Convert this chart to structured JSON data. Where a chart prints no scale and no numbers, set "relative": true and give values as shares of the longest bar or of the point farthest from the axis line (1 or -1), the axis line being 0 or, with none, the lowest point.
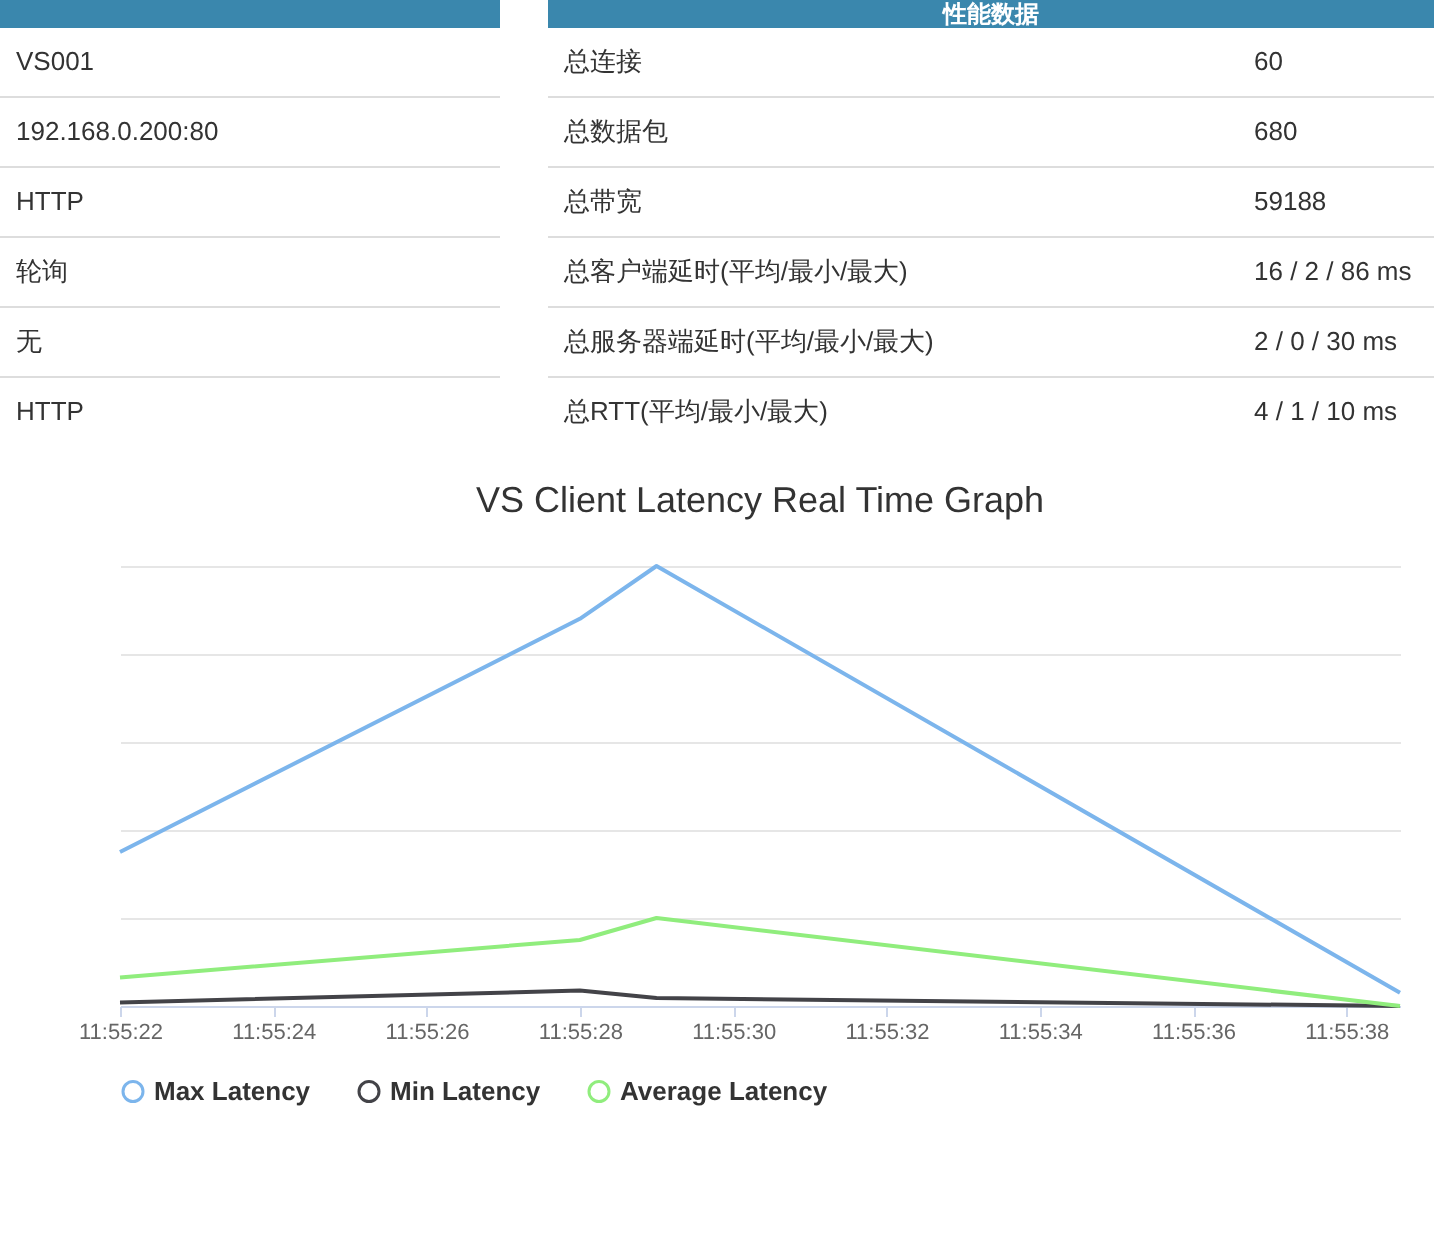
{
  "chart_data": [
    {
      "type": "other",
      "title": "性能数据",
      "annotations": [
        "VS001",
        "192.168.0.200:80",
        "HTTP",
        "轮询",
        "无",
        "HTTP",
        "总连接",
        "60",
        "总数据包",
        "680",
        "总带宽",
        "59188",
        "总客户端延时(平均/最小/最大)",
        "16 / 2 / 86 ms",
        "总服务器端延时(平均/最小/最大)",
        "2 / 0 / 30 ms",
        "总RTT(平均/最小/最大)",
        "4 / 1 / 10 ms"
      ]
    },
    {
      "type": "line",
      "title": "VS Client Latency Real Time Graph",
      "relative": true,
      "grid": "y",
      "legend": "bottom",
      "marker": "none",
      "line_style": "solid",
      "xlim": [
        11.9227778,
        11.9274167
      ],
      "xticks": [
        {
          "value": 11.9227778,
          "label": "11:55:22"
        },
        {
          "value": 11.9233333,
          "label": "11:55:24"
        },
        {
          "value": 11.9238889,
          "label": "11:55:26"
        },
        {
          "value": 11.9244444,
          "label": "11:55:28"
        },
        {
          "value": 11.925,
          "label": "11:55:30"
        },
        {
          "value": 11.9255556,
          "label": "11:55:32"
        },
        {
          "value": 11.9261111,
          "label": "11:55:34"
        },
        {
          "value": 11.9266667,
          "label": "11:55:36"
        },
        {
          "value": 11.9272222,
          "label": "11:55:38"
        }
      ],
      "x": [
        11.9227778,
        11.9244444,
        11.9247222,
        11.9274167
      ],
      "series": [
        {
          "name": "Max Latency",
          "color": "#7cb5ec",
          "values": [
            0.35,
            0.88,
            1,
            0.03
          ]
        },
        {
          "name": "Min Latency",
          "color": "#434348",
          "values": [
            0.008,
            0.035,
            0.018,
            0
          ]
        },
        {
          "name": "Average Latency",
          "color": "#90ed7d",
          "values": [
            0.065,
            0.15,
            0.2,
            0
          ]
        }
      ]
    }
  ]
}
